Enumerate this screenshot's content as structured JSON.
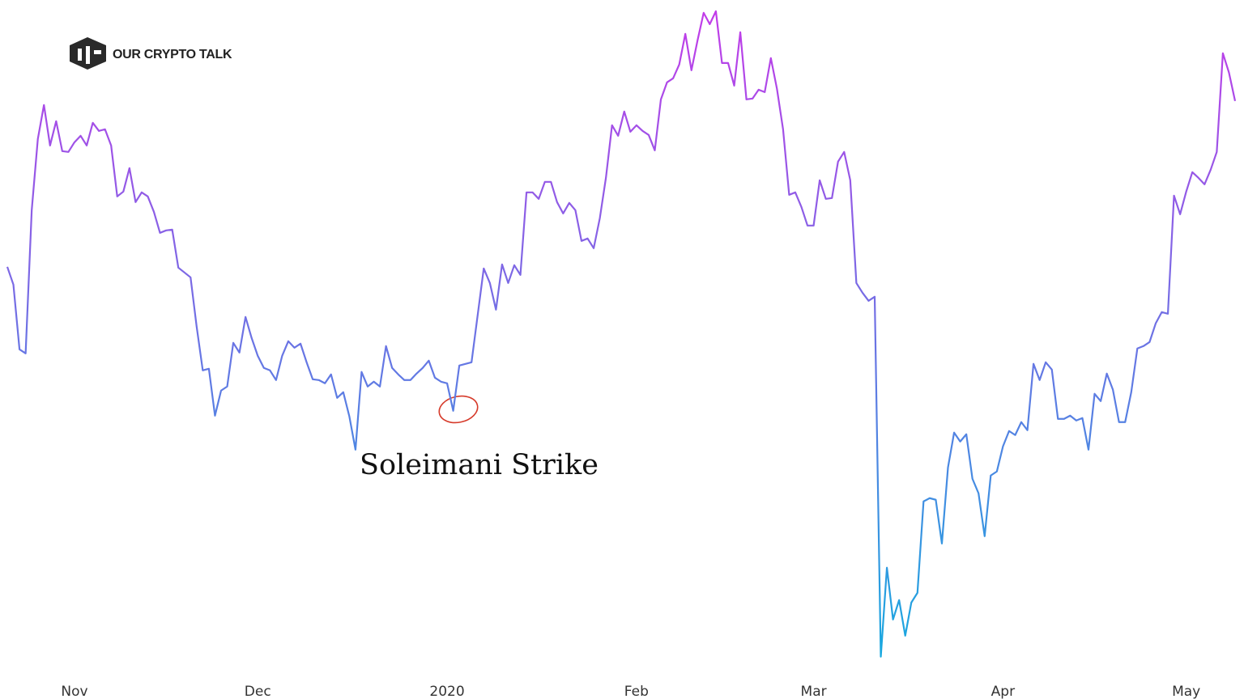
{
  "logo": {
    "text": "OUR CRYPTO TALK"
  },
  "chart_data": {
    "type": "line",
    "annotation": "Soleimani Strike",
    "gradient": [
      "#c53ae9",
      "#16aadf"
    ],
    "ylim": [
      4900,
      10550
    ],
    "categories": [
      null,
      null,
      null,
      null,
      null,
      null,
      null,
      null,
      null,
      null,
      null,
      "Nov",
      null,
      null,
      null,
      null,
      null,
      null,
      null,
      null,
      null,
      null,
      null,
      null,
      null,
      null,
      null,
      null,
      null,
      null,
      null,
      null,
      null,
      null,
      null,
      null,
      null,
      null,
      null,
      null,
      null,
      "Dec",
      null,
      null,
      null,
      null,
      null,
      null,
      null,
      null,
      null,
      null,
      null,
      null,
      null,
      null,
      null,
      null,
      null,
      null,
      null,
      null,
      null,
      null,
      null,
      null,
      null,
      null,
      null,
      null,
      null,
      null,
      "2020",
      null,
      null,
      null,
      null,
      null,
      null,
      null,
      null,
      null,
      null,
      null,
      null,
      null,
      null,
      null,
      null,
      null,
      null,
      null,
      null,
      null,
      null,
      null,
      null,
      null,
      null,
      null,
      null,
      null,
      null,
      "Feb",
      null,
      null,
      null,
      null,
      null,
      null,
      null,
      null,
      null,
      null,
      null,
      null,
      null,
      null,
      null,
      null,
      null,
      null,
      null,
      null,
      null,
      null,
      null,
      null,
      null,
      null,
      null,
      null,
      "Mar",
      null,
      null,
      null,
      null,
      null,
      null,
      null,
      null,
      null,
      null,
      null,
      null,
      null,
      null,
      null,
      null,
      null,
      null,
      null,
      null,
      null,
      null,
      null,
      null,
      null,
      null,
      null,
      null,
      null,
      null,
      "Apr",
      null,
      null,
      null,
      null,
      null,
      null,
      null,
      null,
      null,
      null,
      null,
      null,
      null,
      null,
      null,
      null,
      null,
      null,
      null,
      null,
      null,
      null,
      null,
      null,
      null,
      null,
      null,
      null,
      null,
      "May",
      null,
      null,
      null,
      null,
      null,
      null,
      null,
      null
    ],
    "values": [
      8290,
      8136,
      7576,
      7541,
      8780,
      9396,
      9690,
      9340,
      9550,
      9291,
      9284,
      9368,
      9424,
      9340,
      9536,
      9466,
      9480,
      9340,
      8899,
      8941,
      9144,
      8850,
      8934,
      8899,
      8766,
      8584,
      8605,
      8612,
      8283,
      8241,
      8199,
      7772,
      7394,
      7408,
      7002,
      7219,
      7254,
      7632,
      7548,
      7856,
      7674,
      7520,
      7415,
      7394,
      7310,
      7520,
      7646,
      7590,
      7625,
      7464,
      7317,
      7310,
      7282,
      7359,
      7156,
      7205,
      6995,
      6708,
      7380,
      7254,
      7296,
      7254,
      7604,
      7415,
      7359,
      7310,
      7310,
      7366,
      7415,
      7478,
      7331,
      7296,
      7282,
      7044,
      7436,
      7450,
      7464,
      7870,
      8276,
      8150,
      7919,
      8311,
      8150,
      8304,
      8220,
      8934,
      8934,
      8878,
      9025,
      9025,
      8850,
      8752,
      8843,
      8780,
      8514,
      8535,
      8451,
      8710,
      9060,
      9515,
      9424,
      9634,
      9459,
      9515,
      9466,
      9431,
      9298,
      9739,
      9886,
      9921,
      10040,
      10306,
      9991,
      10250,
      10488,
      10390,
      10502,
      10054,
      10054,
      9858,
      10320,
      9739,
      9746,
      9823,
      9802,
      10096,
      9830,
      9480,
      8913,
      8934,
      8808,
      8647,
      8647,
      9039,
      8878,
      8885,
      9200,
      9284,
      9039,
      8150,
      8066,
      7996,
      8031,
      4916,
      5686,
      5238,
      5406,
      5098,
      5385,
      5469,
      6260,
      6288,
      6274,
      5896,
      6554,
      6855,
      6778,
      6841,
      6456,
      6330,
      5959,
      6484,
      6519,
      6736,
      6869,
      6834,
      6946,
      6876,
      7450,
      7310,
      7464,
      7401,
      6974,
      6974,
      7002,
      6960,
      6981,
      6708,
      7191,
      7128,
      7366,
      7226,
      6946,
      6946,
      7205,
      7583,
      7604,
      7639,
      7800,
      7898,
      7884,
      8906,
      8745,
      8941,
      9109,
      9060,
      9004,
      9130,
      9284,
      10138,
      9970,
      9725
    ]
  }
}
